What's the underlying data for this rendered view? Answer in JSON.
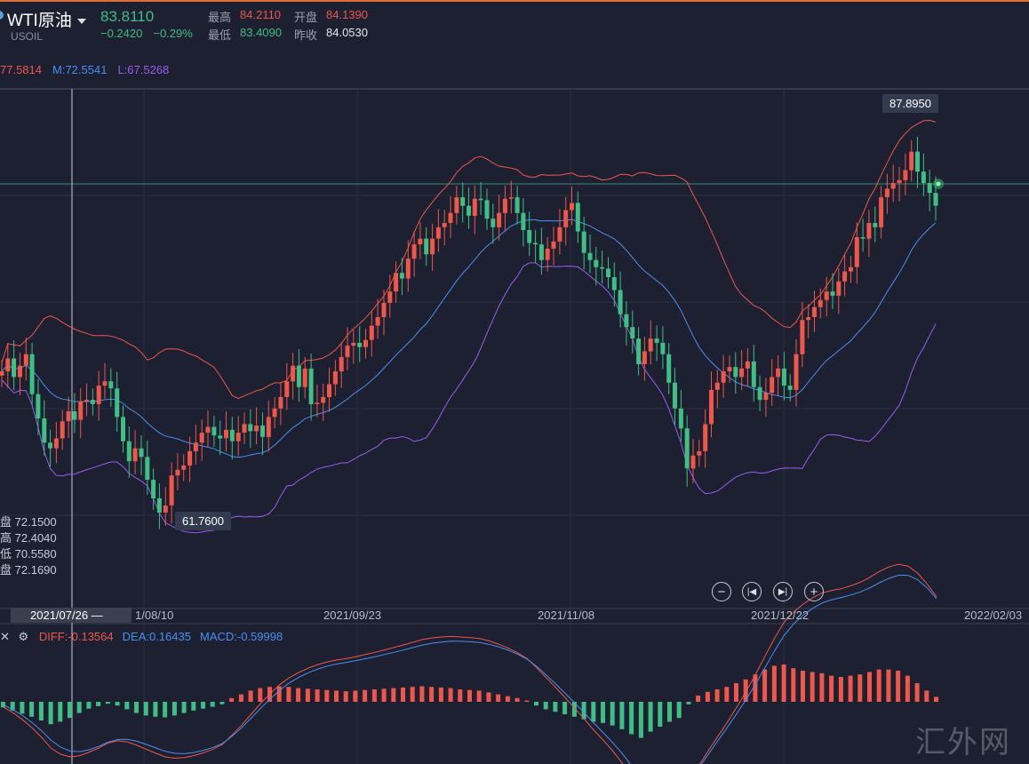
{
  "header": {
    "symbol": "WTI原油",
    "ticker": "USOIL",
    "last": "83.8110",
    "change": "−0.2420",
    "change_pct": "−0.29%",
    "high_label": "最高",
    "high": "84.2110",
    "open_label": "开盘",
    "open": "84.1390",
    "low_label": "最低",
    "low": "83.4090",
    "prev_label": "昨收",
    "prev": "84.0530"
  },
  "boll_legend": {
    "upper": "77.5814",
    "mid": "M:72.5541",
    "lower": "L:67.5268"
  },
  "cursor_ohlc": [
    {
      "label": "盘",
      "value": "72.1500"
    },
    {
      "label": "高",
      "value": "72.4040"
    },
    {
      "label": "低",
      "value": "70.5580"
    },
    {
      "label": "盘",
      "value": "72.1690"
    }
  ],
  "price_labels": {
    "high": "87.8950",
    "low": "61.7600"
  },
  "x_axis": {
    "cursor": "2021/07/26 —",
    "ticks": [
      "1/08/10",
      "2021/09/23",
      "2021/11/08",
      "2021/12/22",
      "2022/02/03"
    ]
  },
  "macd_legend": {
    "diff": "DIFF:-0.13564",
    "dea": "DEA:0.16435",
    "macd": "MACD:-0.59998"
  },
  "watermark": "汇外网",
  "icons": [
    "minus-icon",
    "skip-back-icon",
    "skip-forward-icon",
    "plus-icon",
    "settings-gear-icon",
    "close-icon"
  ],
  "colors": {
    "up": "#f0564a",
    "down": "#3fbf84",
    "upper": "#f0564a",
    "mid": "#4a8ff0",
    "lower": "#9a5cf0"
  },
  "chart_data": [
    {
      "type": "candlestick",
      "title": "",
      "series_close": [
        72.2,
        73.1,
        71.8,
        72.6,
        73.4,
        70.6,
        68.9,
        67.2,
        66.8,
        67.5,
        68.7,
        69.4,
        68.8,
        70.1,
        70.2,
        69.9,
        71.2,
        71.5,
        71.0,
        69.0,
        67.3,
        65.9,
        66.8,
        66.2,
        64.6,
        63.3,
        62.3,
        62.8,
        64.9,
        65.3,
        65.6,
        66.6,
        67.2,
        67.9,
        68.3,
        67.7,
        67.5,
        68.1,
        67.3,
        67.9,
        68.5,
        68.0,
        68.4,
        67.6,
        69.0,
        69.6,
        70.4,
        71.5,
        72.6,
        71.1,
        72.4,
        69.9,
        70.0,
        70.4,
        71.3,
        72.2,
        73.2,
        74.0,
        74.2,
        73.9,
        74.4,
        75.4,
        76.0,
        77.0,
        77.8,
        79.1,
        78.7,
        80.1,
        81.1,
        81.5,
        80.4,
        81.5,
        82.3,
        82.6,
        83.3,
        84.4,
        83.8,
        83.1,
        84.3,
        84.2,
        82.9,
        82.3,
        83.3,
        84.3,
        84.4,
        83.3,
        82.1,
        81.2,
        81.1,
        80.0,
        80.8,
        81.3,
        82.3,
        83.5,
        84.0,
        82.0,
        80.5,
        80.0,
        79.5,
        79.4,
        78.8,
        77.9,
        76.2,
        75.3,
        74.5,
        72.7,
        73.6,
        74.5,
        74.2,
        73.4,
        71.4,
        69.6,
        68.2,
        65.4,
        66.3,
        66.6,
        68.5,
        70.9,
        71.4,
        72.2,
        72.5,
        71.8,
        72.4,
        72.9,
        71.1,
        70.2,
        70.7,
        71.8,
        72.4,
        71.2,
        70.9,
        73.4,
        75.8,
        76.0,
        76.7,
        77.2,
        77.8,
        77.5,
        78.5,
        79.2,
        79.5,
        81.6,
        81.5,
        82.6,
        82.3,
        84.4,
        85.0,
        85.4,
        85.6,
        86.3,
        87.6,
        86.2,
        85.4,
        84.7,
        83.8
      ],
      "high_marker": 87.895,
      "low_marker": 61.76,
      "y_unit": "price",
      "x_ticks": [
        "1/08/10",
        "2021/09/23",
        "2021/11/08",
        "2021/12/22",
        "2022/02/03"
      ]
    },
    {
      "type": "bar",
      "title": "",
      "series": [
        {
          "name": "DIFF",
          "value": -0.13564
        },
        {
          "name": "DEA",
          "value": 0.16435
        },
        {
          "name": "MACD",
          "value": -0.59998
        }
      ],
      "histogram": [
        -0.45,
        -0.7,
        -0.95,
        -1.2,
        -1.5,
        -1.8,
        -1.6,
        -1.3,
        -0.9,
        -0.55,
        -0.35,
        -0.15,
        -0.3,
        -0.6,
        -0.9,
        -1.1,
        -1.2,
        -1.25,
        -1.1,
        -0.9,
        -0.7,
        -0.55,
        -0.4,
        -0.2,
        0.3,
        0.6,
        0.9,
        1.1,
        1.2,
        1.25,
        1.2,
        1.1,
        1.05,
        1.0,
        0.95,
        0.9,
        0.85,
        0.9,
        0.95,
        1.0,
        1.05,
        1.1,
        1.15,
        1.2,
        1.25,
        1.2,
        1.15,
        1.1,
        1.0,
        0.95,
        0.9,
        0.75,
        0.6,
        0.45,
        0.3,
        0.1,
        -0.3,
        -0.6,
        -0.8,
        -1.0,
        -1.2,
        -1.4,
        -1.6,
        -1.7,
        -1.9,
        -2.2,
        -2.6,
        -2.9,
        -2.4,
        -2.0,
        -1.6,
        -1.3,
        -0.2,
        0.5,
        0.8,
        1.0,
        1.2,
        1.5,
        1.8,
        2.2,
        2.6,
        2.9,
        3.0,
        2.7,
        2.5,
        2.4,
        2.3,
        2.1,
        2.0,
        2.1,
        2.2,
        2.4,
        2.6,
        2.6,
        2.5,
        2.1,
        1.5,
        0.9,
        0.4
      ]
    }
  ]
}
